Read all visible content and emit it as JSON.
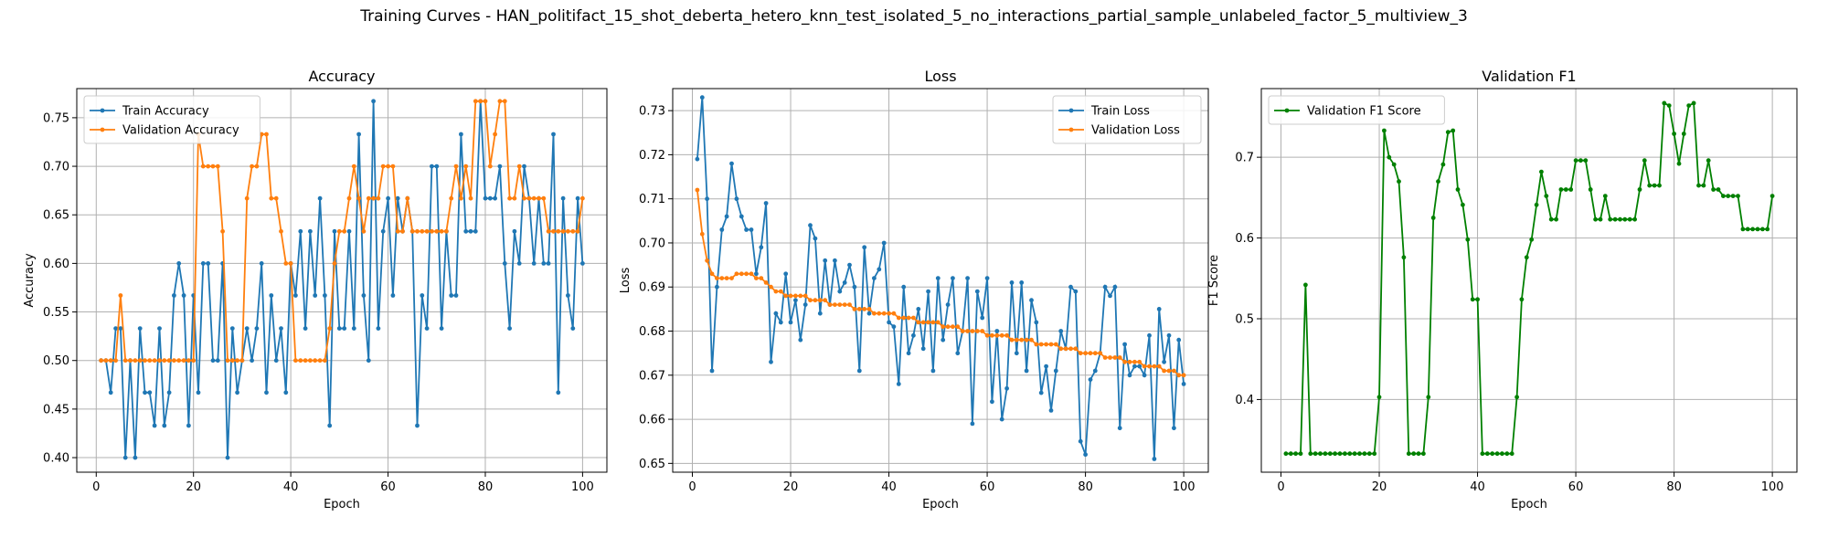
{
  "figure": {
    "suptitle": "Training Curves - HAN_politifact_15_shot_deberta_hetero_knn_test_isolated_5_no_interactions_partial_sample_unlabeled_factor_5_multiview_3"
  },
  "chart_data": [
    {
      "type": "line",
      "title": "Accuracy",
      "xlabel": "Epoch",
      "ylabel": "Accuracy",
      "xlim": [
        -4,
        105
      ],
      "ylim": [
        0.385,
        0.78
      ],
      "xticks": [
        0,
        20,
        40,
        60,
        80,
        100
      ],
      "yticks": [
        0.4,
        0.45,
        0.5,
        0.55,
        0.6,
        0.65,
        0.7,
        0.75
      ],
      "ytick_decimals": 2,
      "grid": true,
      "legend": "upper left",
      "series": [
        {
          "name": "Train Accuracy",
          "color": "#1f77b4",
          "values": [
            0.5,
            0.5,
            0.467,
            0.533,
            0.533,
            0.4,
            0.5,
            0.4,
            0.533,
            0.467,
            0.467,
            0.433,
            0.533,
            0.433,
            0.467,
            0.567,
            0.6,
            0.567,
            0.433,
            0.567,
            0.467,
            0.6,
            0.6,
            0.5,
            0.5,
            0.6,
            0.4,
            0.533,
            0.467,
            0.5,
            0.533,
            0.5,
            0.533,
            0.6,
            0.467,
            0.567,
            0.5,
            0.533,
            0.467,
            0.6,
            0.567,
            0.633,
            0.533,
            0.633,
            0.567,
            0.667,
            0.567,
            0.433,
            0.633,
            0.533,
            0.533,
            0.633,
            0.533,
            0.733,
            0.567,
            0.5,
            0.767,
            0.533,
            0.633,
            0.667,
            0.567,
            0.667,
            0.633,
            0.667,
            0.633,
            0.433,
            0.567,
            0.533,
            0.7,
            0.7,
            0.533,
            0.633,
            0.567,
            0.567,
            0.733,
            0.633,
            0.633,
            0.633,
            0.767,
            0.667,
            0.667,
            0.667,
            0.7,
            0.6,
            0.533,
            0.633,
            0.6,
            0.7,
            0.667,
            0.6,
            0.667,
            0.6,
            0.6,
            0.733,
            0.467,
            0.667,
            0.567,
            0.533,
            0.667,
            0.6
          ]
        },
        {
          "name": "Validation Accuracy",
          "color": "#ff7f0e",
          "values": [
            0.5,
            0.5,
            0.5,
            0.5,
            0.567,
            0.5,
            0.5,
            0.5,
            0.5,
            0.5,
            0.5,
            0.5,
            0.5,
            0.5,
            0.5,
            0.5,
            0.5,
            0.5,
            0.5,
            0.5,
            0.733,
            0.7,
            0.7,
            0.7,
            0.7,
            0.633,
            0.5,
            0.5,
            0.5,
            0.5,
            0.667,
            0.7,
            0.7,
            0.733,
            0.733,
            0.667,
            0.667,
            0.633,
            0.6,
            0.6,
            0.5,
            0.5,
            0.5,
            0.5,
            0.5,
            0.5,
            0.5,
            0.533,
            0.6,
            0.633,
            0.633,
            0.667,
            0.7,
            0.667,
            0.633,
            0.667,
            0.667,
            0.667,
            0.7,
            0.7,
            0.7,
            0.633,
            0.633,
            0.667,
            0.633,
            0.633,
            0.633,
            0.633,
            0.633,
            0.633,
            0.633,
            0.633,
            0.667,
            0.7,
            0.667,
            0.7,
            0.667,
            0.767,
            0.767,
            0.767,
            0.7,
            0.733,
            0.767,
            0.767,
            0.667,
            0.667,
            0.7,
            0.667,
            0.667,
            0.667,
            0.667,
            0.667,
            0.633,
            0.633,
            0.633,
            0.633,
            0.633,
            0.633,
            0.633,
            0.667
          ]
        }
      ]
    },
    {
      "type": "line",
      "title": "Loss",
      "xlabel": "Epoch",
      "ylabel": "Loss",
      "xlim": [
        -4,
        105
      ],
      "ylim": [
        0.648,
        0.735
      ],
      "xticks": [
        0,
        20,
        40,
        60,
        80,
        100
      ],
      "yticks": [
        0.65,
        0.66,
        0.67,
        0.68,
        0.69,
        0.7,
        0.71,
        0.72,
        0.73
      ],
      "ytick_decimals": 2,
      "grid": true,
      "legend": "upper right",
      "series": [
        {
          "name": "Train Loss",
          "color": "#1f77b4",
          "values": [
            0.719,
            0.733,
            0.71,
            0.671,
            0.69,
            0.703,
            0.706,
            0.718,
            0.71,
            0.706,
            0.703,
            0.703,
            0.693,
            0.699,
            0.709,
            0.673,
            0.684,
            0.682,
            0.693,
            0.682,
            0.687,
            0.678,
            0.686,
            0.704,
            0.701,
            0.684,
            0.696,
            0.686,
            0.696,
            0.689,
            0.691,
            0.695,
            0.69,
            0.671,
            0.699,
            0.684,
            0.692,
            0.694,
            0.7,
            0.682,
            0.681,
            0.668,
            0.69,
            0.675,
            0.679,
            0.685,
            0.676,
            0.689,
            0.671,
            0.692,
            0.678,
            0.686,
            0.692,
            0.675,
            0.68,
            0.692,
            0.659,
            0.689,
            0.683,
            0.692,
            0.664,
            0.68,
            0.66,
            0.667,
            0.691,
            0.675,
            0.691,
            0.671,
            0.687,
            0.682,
            0.666,
            0.672,
            0.662,
            0.671,
            0.68,
            0.676,
            0.69,
            0.689,
            0.655,
            0.652,
            0.669,
            0.671,
            0.675,
            0.69,
            0.688,
            0.69,
            0.658,
            0.677,
            0.67,
            0.672,
            0.672,
            0.67,
            0.679,
            0.651,
            0.685,
            0.673,
            0.679,
            0.658,
            0.678,
            0.668
          ]
        },
        {
          "name": "Validation Loss",
          "color": "#ff7f0e",
          "values": [
            0.712,
            0.702,
            0.696,
            0.693,
            0.692,
            0.692,
            0.692,
            0.692,
            0.693,
            0.693,
            0.693,
            0.693,
            0.692,
            0.692,
            0.691,
            0.69,
            0.689,
            0.689,
            0.688,
            0.688,
            0.688,
            0.688,
            0.688,
            0.687,
            0.687,
            0.687,
            0.687,
            0.686,
            0.686,
            0.686,
            0.686,
            0.686,
            0.685,
            0.685,
            0.685,
            0.685,
            0.684,
            0.684,
            0.684,
            0.684,
            0.684,
            0.683,
            0.683,
            0.683,
            0.683,
            0.682,
            0.682,
            0.682,
            0.682,
            0.682,
            0.681,
            0.681,
            0.681,
            0.681,
            0.68,
            0.68,
            0.68,
            0.68,
            0.68,
            0.679,
            0.679,
            0.679,
            0.679,
            0.679,
            0.678,
            0.678,
            0.678,
            0.678,
            0.678,
            0.677,
            0.677,
            0.677,
            0.677,
            0.677,
            0.676,
            0.676,
            0.676,
            0.676,
            0.675,
            0.675,
            0.675,
            0.675,
            0.675,
            0.674,
            0.674,
            0.674,
            0.674,
            0.673,
            0.673,
            0.673,
            0.673,
            0.672,
            0.672,
            0.672,
            0.672,
            0.671,
            0.671,
            0.671,
            0.67,
            0.67
          ]
        }
      ]
    },
    {
      "type": "line",
      "title": "Validation F1",
      "xlabel": "Epoch",
      "ylabel": "F1 Score",
      "xlim": [
        -4,
        105
      ],
      "ylim": [
        0.31,
        0.785
      ],
      "xticks": [
        0,
        20,
        40,
        60,
        80,
        100
      ],
      "yticks": [
        0.4,
        0.5,
        0.6,
        0.7
      ],
      "ytick_decimals": 1,
      "grid": true,
      "legend": "upper left",
      "series": [
        {
          "name": "Validation F1 Score",
          "color": "#008000",
          "values": [
            0.333,
            0.333,
            0.333,
            0.333,
            0.542,
            0.333,
            0.333,
            0.333,
            0.333,
            0.333,
            0.333,
            0.333,
            0.333,
            0.333,
            0.333,
            0.333,
            0.333,
            0.333,
            0.333,
            0.403,
            0.733,
            0.7,
            0.691,
            0.67,
            0.576,
            0.333,
            0.333,
            0.333,
            0.333,
            0.403,
            0.625,
            0.67,
            0.691,
            0.731,
            0.733,
            0.66,
            0.641,
            0.598,
            0.524,
            0.524,
            0.333,
            0.333,
            0.333,
            0.333,
            0.333,
            0.333,
            0.333,
            0.403,
            0.524,
            0.576,
            0.598,
            0.641,
            0.682,
            0.652,
            0.623,
            0.623,
            0.66,
            0.66,
            0.66,
            0.696,
            0.696,
            0.696,
            0.66,
            0.623,
            0.623,
            0.652,
            0.623,
            0.623,
            0.623,
            0.623,
            0.623,
            0.623,
            0.66,
            0.696,
            0.665,
            0.665,
            0.665,
            0.767,
            0.764,
            0.729,
            0.692,
            0.729,
            0.764,
            0.767,
            0.665,
            0.665,
            0.696,
            0.66,
            0.66,
            0.652,
            0.652,
            0.652,
            0.652,
            0.611,
            0.611,
            0.611,
            0.611,
            0.611,
            0.611,
            0.652
          ]
        }
      ]
    }
  ]
}
